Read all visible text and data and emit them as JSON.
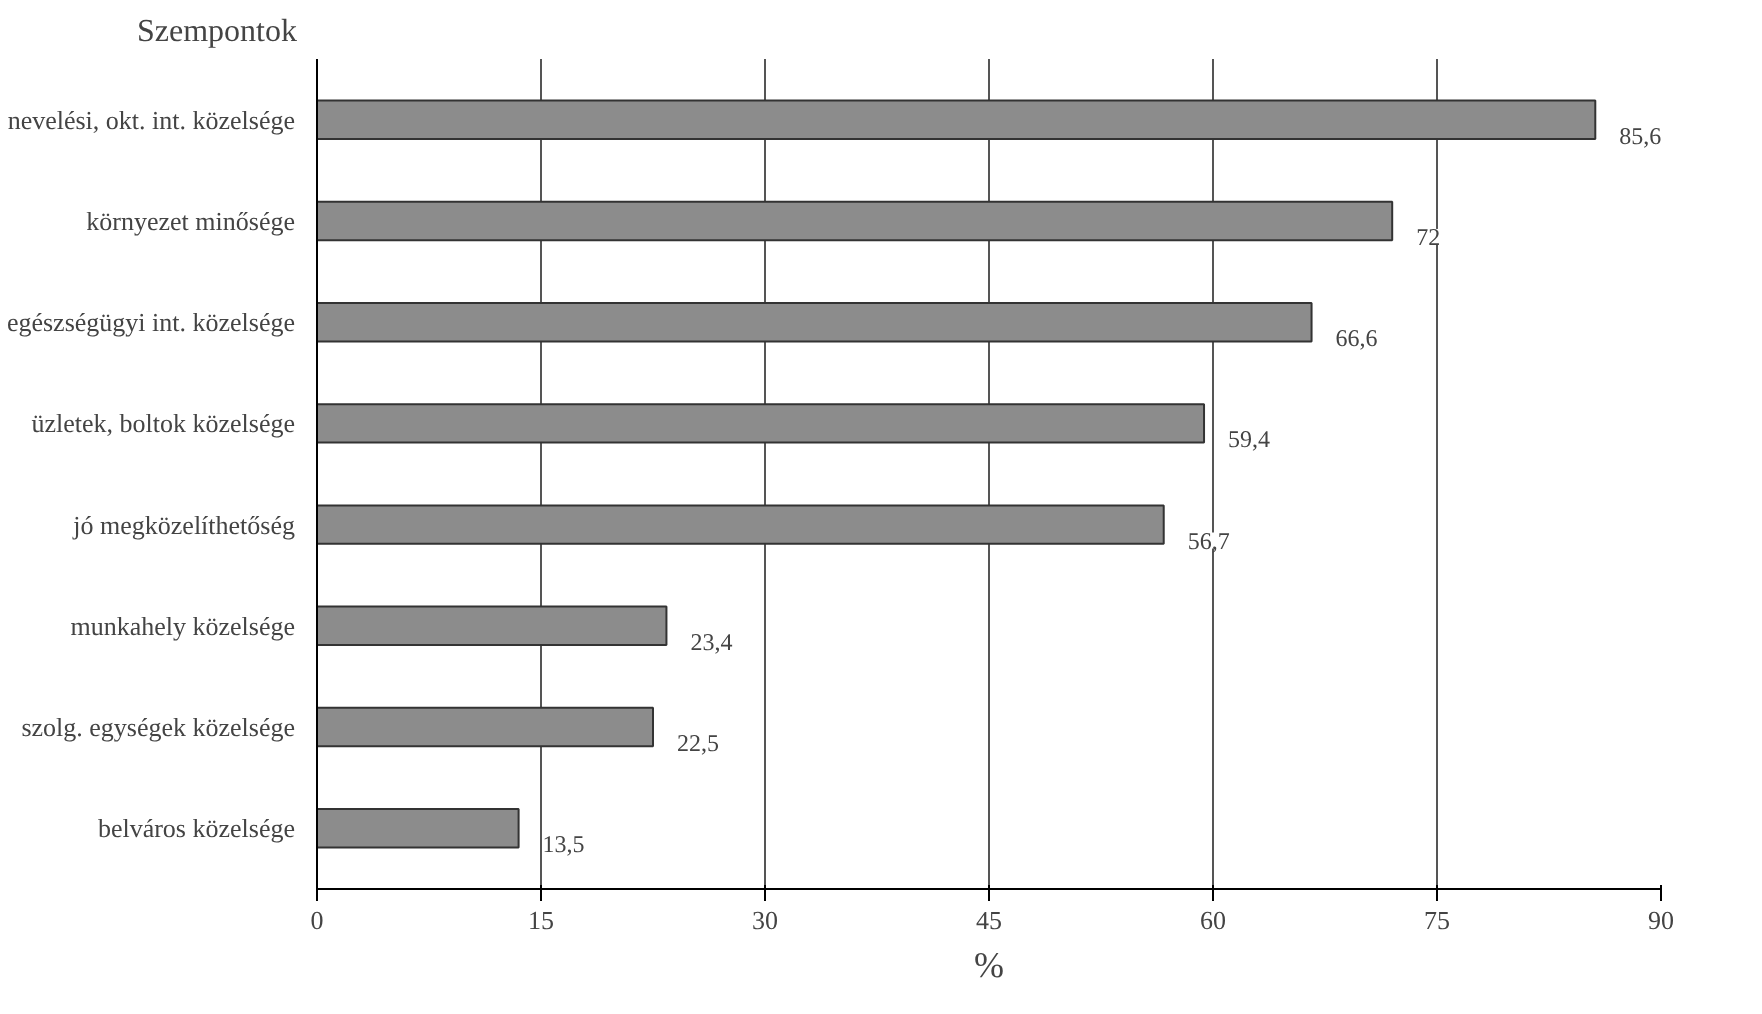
{
  "chart_data": {
    "type": "bar",
    "orientation": "horizontal",
    "ylabel": "Szempontok",
    "xlabel": "%",
    "categories": [
      "nevelési, okt. int. közelsége",
      "környezet minősége",
      "egészségügyi int. közelsége",
      "üzletek, boltok közelsége",
      "jó megközelíthetőség",
      "munkahely közelsége",
      "szolg. egységek közelsége",
      "belváros közelsége"
    ],
    "values": [
      85.6,
      72,
      66.6,
      59.4,
      56.7,
      23.4,
      22.5,
      13.5
    ],
    "value_labels": [
      "85,6",
      "72",
      "66,6",
      "59,4",
      "56,7",
      "23,4",
      "22,5",
      "13,5"
    ],
    "color": "#8c8c8c",
    "xlim": [
      0,
      90
    ],
    "xticks": [
      0,
      15,
      30,
      45,
      60,
      75,
      90
    ],
    "grid": "x"
  }
}
